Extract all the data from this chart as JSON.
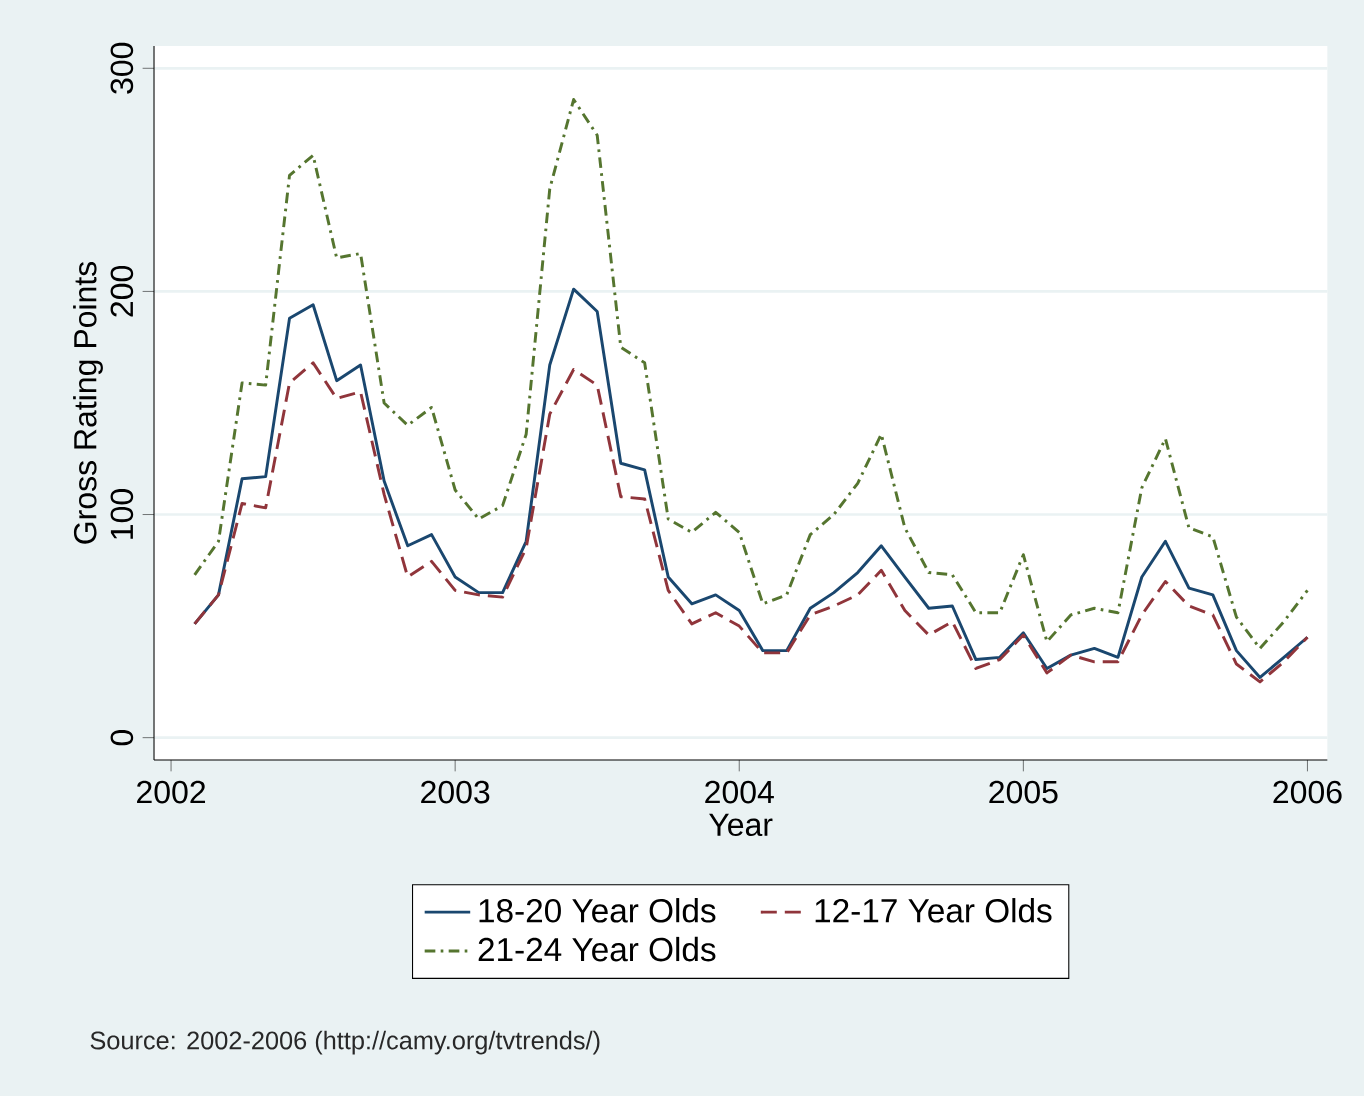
{
  "chart_data": {
    "type": "line",
    "xlabel": "Year",
    "ylabel": "Gross Rating Points",
    "x": [
      2002.083,
      2002.167,
      2002.25,
      2002.333,
      2002.417,
      2002.5,
      2002.583,
      2002.667,
      2002.75,
      2002.833,
      2002.917,
      2003.0,
      2003.083,
      2003.167,
      2003.25,
      2003.333,
      2003.417,
      2003.5,
      2003.583,
      2003.667,
      2003.75,
      2003.833,
      2003.917,
      2004.0,
      2004.083,
      2004.167,
      2004.25,
      2004.333,
      2004.417,
      2004.5,
      2004.583,
      2004.667,
      2004.75,
      2004.833,
      2004.917,
      2005.0,
      2005.083,
      2005.167,
      2005.25,
      2005.333,
      2005.417,
      2005.5,
      2005.583,
      2005.667,
      2005.75,
      2005.833,
      2005.917,
      2006.0
    ],
    "series": [
      {
        "name": "18-20 Year Olds",
        "color": "#1a476f",
        "line_style": "solid",
        "values": [
          51,
          64,
          116,
          117,
          188,
          194,
          160,
          167,
          115,
          86,
          91,
          72,
          65,
          65,
          88,
          167,
          201,
          191,
          123,
          120,
          72,
          60,
          64,
          57,
          39,
          39,
          58,
          65,
          74,
          86,
          72,
          58,
          59,
          35,
          36,
          47,
          31,
          37,
          40,
          36,
          72,
          88,
          67,
          64,
          39,
          27,
          36,
          45
        ]
      },
      {
        "name": "12-17 Year Olds",
        "color": "#90353b",
        "line_style": "dashed",
        "values": [
          51,
          64,
          105,
          103,
          159,
          168,
          152,
          155,
          109,
          72,
          79,
          66,
          64,
          63,
          85,
          145,
          165,
          158,
          108,
          107,
          66,
          51,
          56,
          50,
          38,
          38,
          55,
          59,
          64,
          75,
          57,
          46,
          52,
          31,
          35,
          46,
          29,
          37,
          34,
          34,
          55,
          70,
          59,
          55,
          33,
          25,
          34,
          45
        ]
      },
      {
        "name": "21-24 Year Olds",
        "color": "#55752f",
        "line_style": "dashdot",
        "values": [
          73,
          88,
          159,
          158,
          252,
          261,
          215,
          217,
          150,
          140,
          148,
          111,
          98,
          104,
          136,
          246,
          286,
          270,
          175,
          168,
          98,
          92,
          101,
          92,
          60,
          64,
          91,
          100,
          114,
          136,
          94,
          74,
          73,
          56,
          56,
          82,
          43,
          55,
          58,
          56,
          112,
          134,
          94,
          90,
          54,
          40,
          52,
          66
        ]
      }
    ],
    "xlim": [
      2001.94,
      2006.07
    ],
    "xticks": [
      2002,
      2003,
      2004,
      2005,
      2006
    ],
    "ylim": [
      -10,
      310
    ],
    "yticks": [
      0,
      100,
      200,
      300
    ],
    "grid": "y",
    "legend": "bottom",
    "marker": "none",
    "annotations": [
      "Source: 2002-2006 (http://camy.org/tvtrends/)"
    ]
  }
}
